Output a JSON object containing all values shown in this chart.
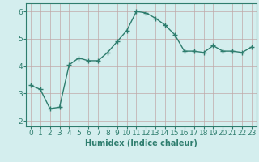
{
  "x": [
    0,
    1,
    2,
    3,
    4,
    5,
    6,
    7,
    8,
    9,
    10,
    11,
    12,
    13,
    14,
    15,
    16,
    17,
    18,
    19,
    20,
    21,
    22,
    23
  ],
  "y": [
    3.3,
    3.15,
    2.45,
    2.5,
    4.05,
    4.3,
    4.2,
    4.2,
    4.5,
    4.9,
    5.3,
    6.0,
    5.95,
    5.75,
    5.5,
    5.15,
    4.55,
    4.55,
    4.5,
    4.75,
    4.55,
    4.55,
    4.5,
    4.7
  ],
  "line_color": "#2e7d6e",
  "marker": "+",
  "markersize": 4,
  "linewidth": 1.0,
  "background_color": "#d4eeee",
  "grid_color": "#c0a8a8",
  "xlabel": "Humidex (Indice chaleur)",
  "xlim": [
    -0.5,
    23.5
  ],
  "ylim": [
    1.8,
    6.3
  ],
  "yticks": [
    2,
    3,
    4,
    5,
    6
  ],
  "xticks": [
    0,
    1,
    2,
    3,
    4,
    5,
    6,
    7,
    8,
    9,
    10,
    11,
    12,
    13,
    14,
    15,
    16,
    17,
    18,
    19,
    20,
    21,
    22,
    23
  ],
  "xlabel_fontsize": 7,
  "tick_fontsize": 6.5,
  "axis_color": "#2e7d6e"
}
